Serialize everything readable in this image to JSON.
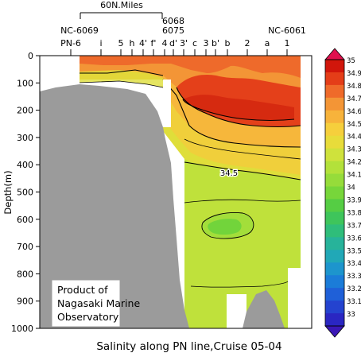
{
  "chart_data": {
    "type": "heatmap",
    "title": "Salinity along PN line,Cruise 05-04",
    "ylabel": "Depth(m)",
    "ylim": [
      0,
      1000
    ],
    "y_inverted": true,
    "y_ticks": [
      0,
      100,
      200,
      300,
      400,
      500,
      600,
      700,
      800,
      900,
      1000
    ],
    "scale_bar_label": "60N.Miles",
    "station_labels": [
      "PN-6",
      "i",
      "5",
      "h",
      "4'",
      "f'",
      "4",
      "d'",
      "3'",
      "c",
      "3",
      "b'",
      "b",
      "2",
      "a",
      "1"
    ],
    "upper_labels": [
      "NC-6069",
      "6068",
      "6075",
      "NC-6061"
    ],
    "contour_label": "34.5",
    "colorbar": {
      "labels": [
        "35",
        "34.9",
        "34.8",
        "34.7",
        "34.6",
        "34.5",
        "34.4",
        "34.3",
        "34.2",
        "34.1",
        "34",
        "33.9",
        "33.8",
        "33.7",
        "33.6",
        "33.5",
        "33.4",
        "33.3",
        "33.2",
        "33.1",
        "33"
      ],
      "colors": [
        "#d1160b",
        "#e43d18",
        "#ef6a2a",
        "#f39536",
        "#f7b33b",
        "#f6cf3c",
        "#e8dc3a",
        "#cfe23c",
        "#b3e13a",
        "#96dc3a",
        "#77d63a",
        "#55cd44",
        "#3ec55b",
        "#2fbd7a",
        "#27b39a",
        "#21a8b7",
        "#1d95cd",
        "#1b7cd8",
        "#1f60d8",
        "#2443cf",
        "#2a26c2"
      ],
      "arrow_colors": [
        "#e0114e",
        "#3a17b6"
      ]
    },
    "water_colors": {
      "level_34_9": "#d62a10",
      "level_34_8": "#e4401a",
      "level_34_7": "#ee6a2b",
      "level_34_6": "#f39536",
      "level_34_5": "#f6b73b",
      "level_34_4": "#f0cf3b",
      "level_34_3": "#dfde3a",
      "level_34_2": "#bfe13b",
      "level_34_1": "#a3de3a",
      "level_34_0": "#72d43b"
    },
    "land_color": "#9b9b9b",
    "credit": [
      "Product of",
      "Nagasaki Marine",
      "Observatory"
    ]
  }
}
